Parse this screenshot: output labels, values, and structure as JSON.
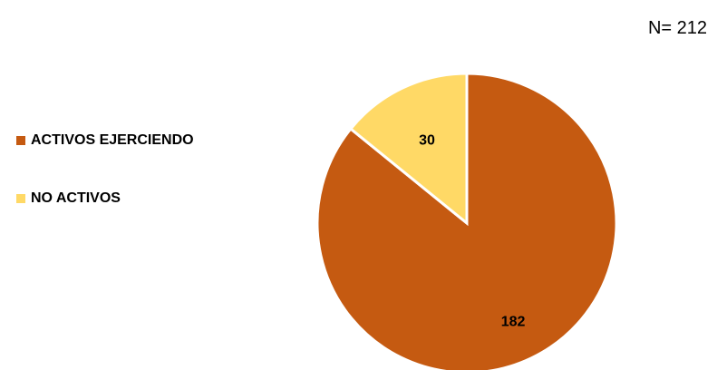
{
  "sample_size": "N= 212",
  "legend": [
    {
      "label": "ACTIVOS EJERCIENDO",
      "color": "#C55A11"
    },
    {
      "label": "NO ACTIVOS",
      "color": "#FFD966"
    }
  ],
  "chart_data": {
    "type": "pie",
    "categories": [
      "ACTIVOS EJERCIENDO",
      "NO ACTIVOS"
    ],
    "values": [
      182,
      30
    ],
    "data_labels": [
      "182",
      "30"
    ],
    "colors": [
      "#C55A11",
      "#FFD966"
    ],
    "legend_position": "left"
  }
}
